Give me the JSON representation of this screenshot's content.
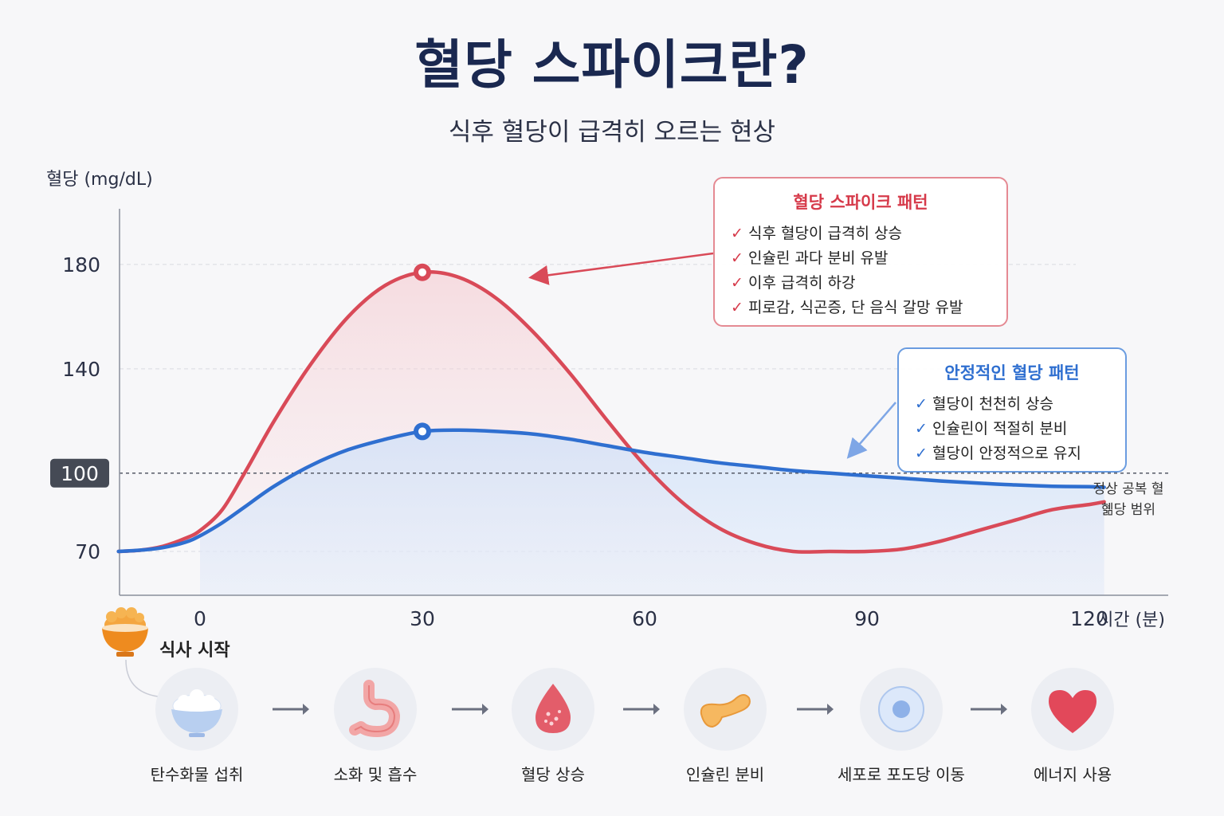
{
  "title": "혈당 스파이크란?",
  "subtitle": "식후 혈당이 급격히 오르는 현상",
  "chart_data": {
    "type": "line",
    "ylabel": "혈당 (mg/dL)",
    "xlabel": "시간 (분)",
    "yticks": [
      180,
      140,
      100,
      70
    ],
    "highlight_ytick": 100,
    "xticks": [
      0,
      30,
      60,
      90,
      120
    ],
    "reference_line": 100,
    "reference_label": "정상 공복 혈 혦당 범위",
    "x": [
      -11,
      -8,
      -5,
      -2,
      0,
      3,
      6,
      10,
      15,
      20,
      25,
      30,
      35,
      40,
      45,
      50,
      55,
      60,
      65,
      70,
      75,
      80,
      85,
      90,
      95,
      100,
      105,
      110,
      115,
      120,
      122
    ],
    "series": [
      {
        "name": "혈당 스파이크 패턴",
        "color": "#d94a58",
        "values": [
          70,
          70.5,
          72,
          75,
          78,
          86,
          100,
          120,
          142,
          160,
          172,
          177,
          175,
          167,
          154,
          138,
          120,
          103,
          89,
          79,
          73,
          70,
          70,
          70,
          71,
          74,
          78,
          82,
          86,
          88,
          89
        ]
      },
      {
        "name": "안정적인 혈당 패턴",
        "color": "#2f6fd0",
        "values": [
          70,
          70.5,
          71.5,
          73.5,
          76,
          81,
          87,
          95,
          103,
          109,
          113,
          116,
          116.5,
          116,
          115,
          113,
          110.5,
          108,
          106,
          104,
          102.5,
          101,
          100,
          99,
          98,
          97,
          96.2,
          95.5,
          95,
          94.8,
          94.6
        ]
      }
    ],
    "markers": [
      {
        "series": 0,
        "x": 30,
        "y": 177
      },
      {
        "series": 1,
        "x": 30,
        "y": 116
      }
    ]
  },
  "callouts": {
    "spike": {
      "title": "혈당 스파이크 패턴",
      "items": [
        "식후 혈당이 급격히 상승",
        "인슐린 과다 분비 유발",
        "이후 급격히 하강",
        "피로감, 식곤증, 단 음식 갈망 유발"
      ]
    },
    "stable": {
      "title": "안정적인 혈당 패턴",
      "items": [
        "혈당이 천천히 상승",
        "인슐린이 적절히 분비",
        "혈당이 안정적으로 유지"
      ]
    }
  },
  "meal_label": "식사 시작",
  "flow": [
    {
      "label": "탄수화물 섭취",
      "icon": "rice-bowl-icon"
    },
    {
      "label": "소화 및 흡수",
      "icon": "stomach-icon"
    },
    {
      "label": "혈당 상승",
      "icon": "blood-drop-icon"
    },
    {
      "label": "인슐린 분비",
      "icon": "pancreas-icon"
    },
    {
      "label": "세포로 포도당 이동",
      "icon": "cell-icon"
    },
    {
      "label": "에너지 사용",
      "icon": "heart-icon"
    }
  ],
  "colors": {
    "spike": "#d94a58",
    "stable": "#2f6fd0",
    "title": "#1a2850"
  }
}
